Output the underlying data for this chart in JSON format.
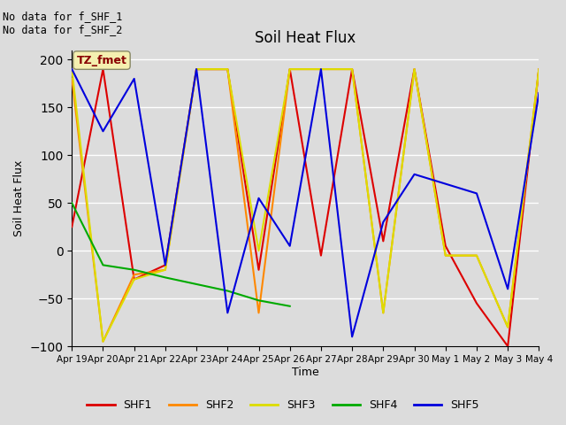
{
  "title": "Soil Heat Flux",
  "ylabel": "Soil Heat Flux",
  "xlabel": "Time",
  "ylim": [
    -100,
    210
  ],
  "yticks": [
    -100,
    -50,
    0,
    50,
    100,
    150,
    200
  ],
  "annotation_text": "No data for f_SHF_1\nNo data for f_SHF_2",
  "tz_label": "TZ_fmet",
  "bg_color": "#dcdcdc",
  "grid_color": "#ffffff",
  "colors": {
    "SHF1": "#dd0000",
    "SHF2": "#ff8800",
    "SHF3": "#dddd00",
    "SHF4": "#00aa00",
    "SHF5": "#0000dd"
  },
  "xtick_labels": [
    "Apr 19",
    "Apr 20",
    "Apr 21",
    "Apr 22",
    "Apr 23",
    "Apr 24",
    "Apr 25",
    "Apr 26",
    "Apr 27",
    "Apr 28",
    "Apr 29",
    "Apr 30",
    "May 1",
    "May 2",
    "May 3",
    "May 4"
  ],
  "SHF1": [
    25,
    190,
    -30,
    -15,
    190,
    190,
    -20,
    190,
    -5,
    190,
    10,
    190,
    5,
    -55,
    -100,
    190
  ],
  "SHF2": [
    180,
    -95,
    -25,
    -20,
    190,
    190,
    -65,
    190,
    190,
    190,
    -65,
    190,
    -5,
    -5,
    -80,
    190
  ],
  "SHF3": [
    190,
    -95,
    -30,
    -20,
    190,
    190,
    0,
    190,
    190,
    190,
    -65,
    190,
    -5,
    -5,
    -80,
    190
  ],
  "SHF4": [
    50,
    -15,
    -20,
    -28,
    -35,
    -42,
    -52,
    -58,
    null,
    null,
    null,
    null,
    null,
    null,
    null,
    null
  ],
  "SHF5": [
    190,
    125,
    180,
    -15,
    190,
    -65,
    55,
    5,
    190,
    -90,
    30,
    80,
    70,
    60,
    -40,
    165
  ]
}
